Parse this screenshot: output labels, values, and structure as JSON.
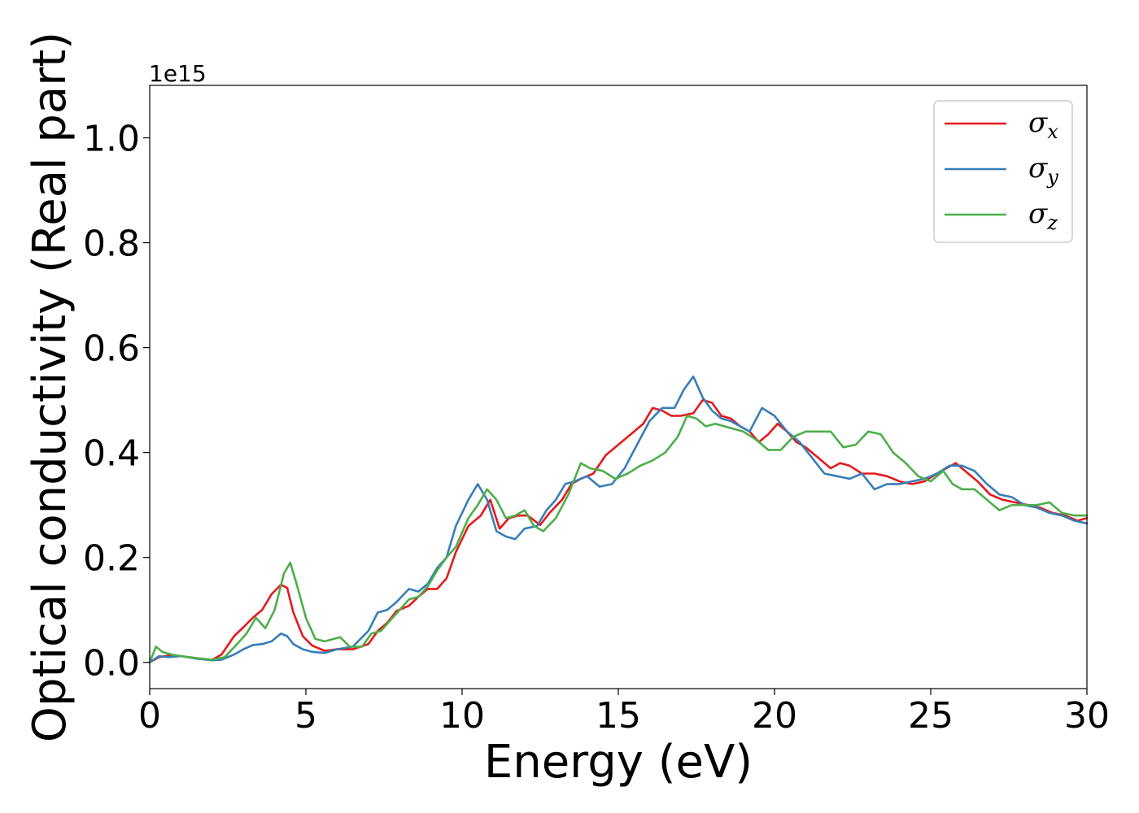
{
  "chart_data": {
    "type": "line",
    "xlabel": "Energy (eV)",
    "ylabel": "Optical conductivity (Real part)",
    "y_offset_label": "1e15",
    "xlim": [
      0,
      30
    ],
    "ylim": [
      -0.05,
      1.1
    ],
    "x_ticks": [
      0,
      5,
      10,
      15,
      20,
      25,
      30
    ],
    "x_tick_labels": [
      "0",
      "5",
      "10",
      "15",
      "20",
      "25",
      "30"
    ],
    "y_ticks": [
      0.0,
      0.2,
      0.4,
      0.6,
      0.8,
      1.0
    ],
    "y_tick_labels": [
      "0.0",
      "0.2",
      "0.4",
      "0.6",
      "0.8",
      "1.0"
    ],
    "grid": false,
    "legend_position": "top-right",
    "series": [
      {
        "name": "σx",
        "legend_symbol": "σ",
        "legend_subscript": "x",
        "color": "#e41a1c",
        "x": [
          0,
          0.3,
          0.6,
          1,
          1.5,
          2,
          2.3,
          2.7,
          3,
          3.3,
          3.6,
          3.9,
          4.2,
          4.4,
          4.6,
          4.9,
          5.2,
          5.6,
          6,
          6.5,
          7,
          7.3,
          7.6,
          7.9,
          8.3,
          8.6,
          8.9,
          9.2,
          9.5,
          9.8,
          10.2,
          10.6,
          10.9,
          11.2,
          11.5,
          11.8,
          12.1,
          12.5,
          12.8,
          13.2,
          13.5,
          13.8,
          14.2,
          14.6,
          15,
          15.4,
          15.8,
          16.1,
          16.4,
          16.7,
          17,
          17.4,
          17.7,
          18,
          18.3,
          18.6,
          18.9,
          19.2,
          19.5,
          19.8,
          20.1,
          20.4,
          20.7,
          21,
          21.4,
          21.8,
          22.1,
          22.4,
          22.8,
          23.2,
          23.6,
          24,
          24.4,
          24.8,
          25.2,
          25.5,
          25.8,
          26.1,
          26.5,
          26.9,
          27.3,
          27.7,
          28.1,
          28.5,
          28.9,
          29.3,
          29.7,
          30
        ],
        "y": [
          0.0,
          0.01,
          0.013,
          0.012,
          0.008,
          0.005,
          0.015,
          0.05,
          0.067,
          0.085,
          0.1,
          0.13,
          0.148,
          0.142,
          0.095,
          0.05,
          0.032,
          0.022,
          0.025,
          0.025,
          0.035,
          0.06,
          0.075,
          0.098,
          0.108,
          0.125,
          0.14,
          0.14,
          0.16,
          0.21,
          0.26,
          0.28,
          0.31,
          0.255,
          0.275,
          0.28,
          0.28,
          0.262,
          0.285,
          0.31,
          0.34,
          0.35,
          0.36,
          0.395,
          0.415,
          0.435,
          0.455,
          0.485,
          0.48,
          0.47,
          0.47,
          0.475,
          0.5,
          0.495,
          0.47,
          0.465,
          0.45,
          0.44,
          0.42,
          0.435,
          0.455,
          0.44,
          0.42,
          0.41,
          0.39,
          0.37,
          0.38,
          0.375,
          0.36,
          0.36,
          0.355,
          0.345,
          0.34,
          0.345,
          0.36,
          0.37,
          0.38,
          0.365,
          0.345,
          0.32,
          0.31,
          0.305,
          0.3,
          0.295,
          0.285,
          0.28,
          0.27,
          0.275
        ]
      },
      {
        "name": "σy",
        "legend_symbol": "σ",
        "legend_subscript": "y",
        "color": "#377eb8",
        "x": [
          0,
          0.3,
          0.6,
          1,
          1.5,
          2,
          2.3,
          2.7,
          3,
          3.3,
          3.6,
          3.9,
          4.2,
          4.4,
          4.6,
          4.9,
          5.2,
          5.6,
          6,
          6.5,
          7,
          7.3,
          7.6,
          7.9,
          8.3,
          8.6,
          8.9,
          9.2,
          9.5,
          9.8,
          10.2,
          10.5,
          10.8,
          11.1,
          11.4,
          11.7,
          12,
          12.4,
          12.7,
          13,
          13.3,
          13.6,
          14,
          14.4,
          14.8,
          15.2,
          15.6,
          16,
          16.4,
          16.8,
          17.1,
          17.4,
          17.7,
          18,
          18.3,
          18.6,
          18.9,
          19.2,
          19.6,
          20,
          20.4,
          20.8,
          21.2,
          21.6,
          22,
          22.4,
          22.8,
          23.2,
          23.6,
          24,
          24.4,
          24.8,
          25.2,
          25.6,
          26,
          26.4,
          26.8,
          27.2,
          27.6,
          28,
          28.4,
          28.8,
          29.2,
          29.6,
          30
        ],
        "y": [
          0.0,
          0.012,
          0.01,
          0.012,
          0.007,
          0.004,
          0.005,
          0.015,
          0.025,
          0.033,
          0.035,
          0.04,
          0.055,
          0.05,
          0.035,
          0.025,
          0.02,
          0.018,
          0.025,
          0.03,
          0.06,
          0.095,
          0.1,
          0.115,
          0.14,
          0.135,
          0.15,
          0.18,
          0.2,
          0.26,
          0.31,
          0.34,
          0.31,
          0.25,
          0.24,
          0.235,
          0.255,
          0.26,
          0.29,
          0.31,
          0.34,
          0.345,
          0.355,
          0.335,
          0.34,
          0.37,
          0.415,
          0.46,
          0.485,
          0.485,
          0.52,
          0.545,
          0.505,
          0.48,
          0.465,
          0.46,
          0.45,
          0.44,
          0.485,
          0.47,
          0.44,
          0.42,
          0.39,
          0.36,
          0.355,
          0.35,
          0.36,
          0.33,
          0.34,
          0.34,
          0.345,
          0.35,
          0.36,
          0.375,
          0.375,
          0.365,
          0.34,
          0.32,
          0.315,
          0.3,
          0.295,
          0.285,
          0.28,
          0.27,
          0.265
        ]
      },
      {
        "name": "σz",
        "legend_symbol": "σ",
        "legend_subscript": "z",
        "color": "#4daf4a",
        "x": [
          0,
          0.2,
          0.4,
          0.7,
          1,
          1.5,
          2,
          2.4,
          2.8,
          3.1,
          3.4,
          3.7,
          4,
          4.3,
          4.5,
          4.7,
          5,
          5.3,
          5.6,
          5.9,
          6.1,
          6.4,
          6.8,
          7.1,
          7.4,
          7.7,
          8,
          8.3,
          8.6,
          8.9,
          9.2,
          9.5,
          9.8,
          10.2,
          10.5,
          10.8,
          11.1,
          11.4,
          11.7,
          12,
          12.3,
          12.6,
          13,
          13.4,
          13.8,
          14.1,
          14.5,
          14.9,
          15.3,
          15.7,
          16.1,
          16.5,
          16.9,
          17.2,
          17.5,
          17.8,
          18.1,
          18.4,
          18.7,
          19,
          19.4,
          19.8,
          20.2,
          20.6,
          21,
          21.4,
          21.8,
          22.2,
          22.6,
          23,
          23.4,
          23.8,
          24.2,
          24.6,
          25,
          25.4,
          25.7,
          26,
          26.4,
          26.8,
          27.2,
          27.6,
          28,
          28.4,
          28.8,
          29.2,
          29.6,
          30
        ],
        "y": [
          0.0,
          0.03,
          0.02,
          0.015,
          0.012,
          0.008,
          0.005,
          0.01,
          0.035,
          0.055,
          0.085,
          0.065,
          0.1,
          0.17,
          0.19,
          0.15,
          0.085,
          0.045,
          0.04,
          0.045,
          0.048,
          0.03,
          0.03,
          0.055,
          0.06,
          0.08,
          0.1,
          0.12,
          0.125,
          0.145,
          0.175,
          0.2,
          0.22,
          0.275,
          0.3,
          0.33,
          0.31,
          0.275,
          0.28,
          0.29,
          0.26,
          0.25,
          0.275,
          0.32,
          0.38,
          0.37,
          0.365,
          0.35,
          0.36,
          0.375,
          0.385,
          0.4,
          0.43,
          0.47,
          0.465,
          0.45,
          0.455,
          0.45,
          0.445,
          0.44,
          0.425,
          0.405,
          0.405,
          0.43,
          0.44,
          0.44,
          0.44,
          0.41,
          0.415,
          0.44,
          0.435,
          0.4,
          0.38,
          0.355,
          0.345,
          0.365,
          0.34,
          0.33,
          0.33,
          0.31,
          0.29,
          0.3,
          0.3,
          0.3,
          0.305,
          0.285,
          0.28,
          0.28
        ]
      }
    ]
  }
}
